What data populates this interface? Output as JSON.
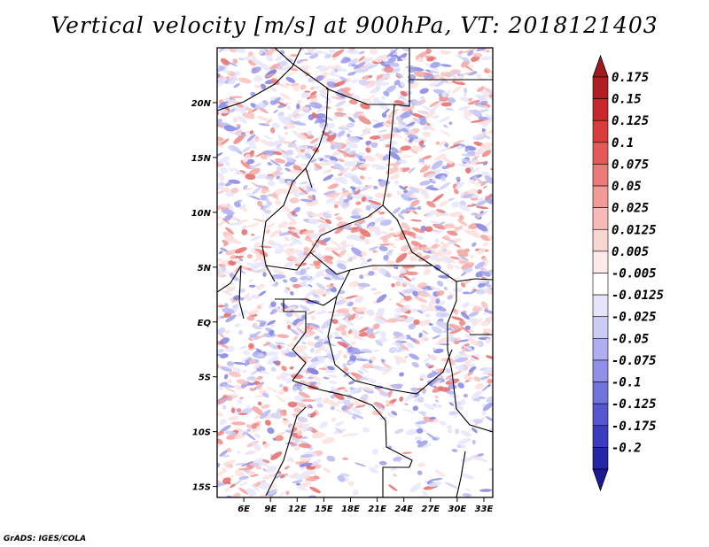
{
  "title": "Vertical velocity [m/s] at 900hPa, VT: 2018121403",
  "footer": "GrADS: IGES/COLA",
  "map": {
    "lon_range": [
      3,
      34
    ],
    "lat_range": [
      -16,
      25
    ],
    "lon_ticks": [
      {
        "value": 6,
        "label": "6E"
      },
      {
        "value": 9,
        "label": "9E"
      },
      {
        "value": 12,
        "label": "12E"
      },
      {
        "value": 15,
        "label": "15E"
      },
      {
        "value": 18,
        "label": "18E"
      },
      {
        "value": 21,
        "label": "21E"
      },
      {
        "value": 24,
        "label": "24E"
      },
      {
        "value": 27,
        "label": "27E"
      },
      {
        "value": 30,
        "label": "30E"
      },
      {
        "value": 33,
        "label": "33E"
      }
    ],
    "lat_ticks": [
      {
        "value": 20,
        "label": "20N"
      },
      {
        "value": 15,
        "label": "15N"
      },
      {
        "value": 10,
        "label": "10N"
      },
      {
        "value": 5,
        "label": "5N"
      },
      {
        "value": 0,
        "label": "EQ"
      },
      {
        "value": -5,
        "label": "5S"
      },
      {
        "value": -10,
        "label": "10S"
      },
      {
        "value": -15,
        "label": "15S"
      }
    ]
  },
  "colorbar": {
    "levels": [
      {
        "label": "0.175",
        "color": "#b01e23"
      },
      {
        "label": "0.15",
        "color": "#c8282d"
      },
      {
        "label": "0.125",
        "color": "#d83c3c"
      },
      {
        "label": "0.1",
        "color": "#e45a58"
      },
      {
        "label": "0.075",
        "color": "#ec7a76"
      },
      {
        "label": "0.05",
        "color": "#f29a96"
      },
      {
        "label": "0.025",
        "color": "#f7bab6"
      },
      {
        "label": "0.0125",
        "color": "#fad6d3"
      },
      {
        "label": "0.005",
        "color": "#fdebe9"
      },
      {
        "label": "-0.005",
        "color": "#ffffff"
      },
      {
        "label": "-0.0125",
        "color": "#e4e4fb"
      },
      {
        "label": "-0.025",
        "color": "#cbcbf6"
      },
      {
        "label": "-0.05",
        "color": "#aeaef0"
      },
      {
        "label": "-0.075",
        "color": "#9090e8"
      },
      {
        "label": "-0.1",
        "color": "#7272dd"
      },
      {
        "label": "-0.125",
        "color": "#5656d0"
      },
      {
        "label": "-0.175",
        "color": "#3b3bc0"
      },
      {
        "label": "-0.2",
        "color": "#2626a8"
      }
    ],
    "top_triangle_color": "#9e1a1f",
    "bottom_triangle_color": "#1a1a95"
  }
}
